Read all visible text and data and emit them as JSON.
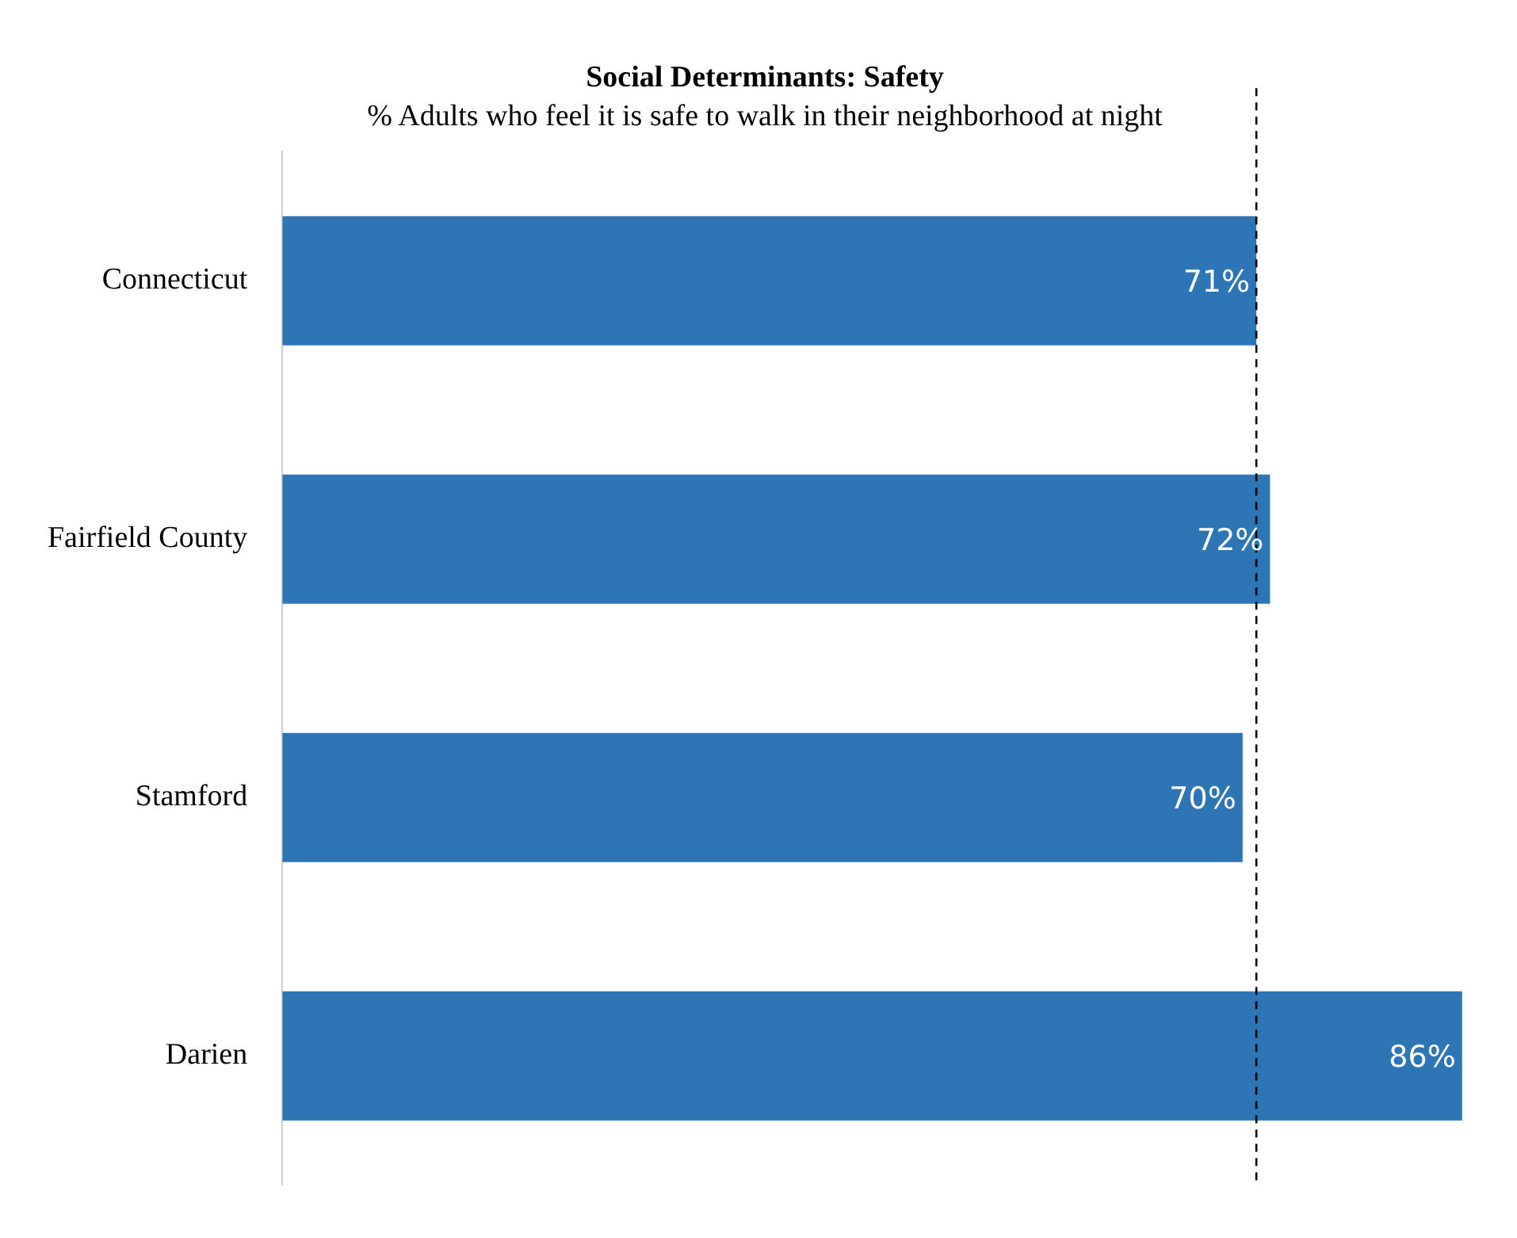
{
  "chart_data": {
    "type": "bar",
    "orientation": "horizontal",
    "title": "Social Determinants: Safety",
    "subtitle": "% Adults who feel it is safe to walk in their neighborhood at night",
    "categories": [
      "Connecticut",
      "Fairfield County",
      "Stamford",
      "Darien"
    ],
    "values": [
      71,
      72,
      70,
      86
    ],
    "color": "#2e75b6",
    "value_labels": [
      "71%",
      "72%",
      "70%",
      "86%"
    ],
    "ref_lines": [
      {
        "axis": "x",
        "value": 71,
        "color": "#000000",
        "line_style": "dashed"
      }
    ],
    "legend": false
  }
}
